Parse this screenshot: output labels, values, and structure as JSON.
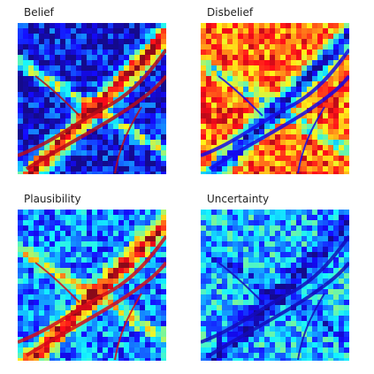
{
  "panels": [
    {
      "title": "Belief",
      "colormap": "jet",
      "base_level": 0.1,
      "river_level": 0.95
    },
    {
      "title": "Disbelief",
      "colormap": "jet",
      "base_level": 0.78,
      "river_level": 0.1
    },
    {
      "title": "Plausibility",
      "colormap": "jet",
      "base_level": 0.25,
      "river_level": 0.92
    },
    {
      "title": "Uncertainty",
      "colormap": "jet",
      "base_level": 0.32,
      "river_level": 0.05
    }
  ],
  "colors": {
    "low": "#3b1cf5",
    "mid_low": "#4dc3ff",
    "mid": "#b8f26a",
    "mid_high": "#ffb000",
    "high": "#d81e05"
  }
}
